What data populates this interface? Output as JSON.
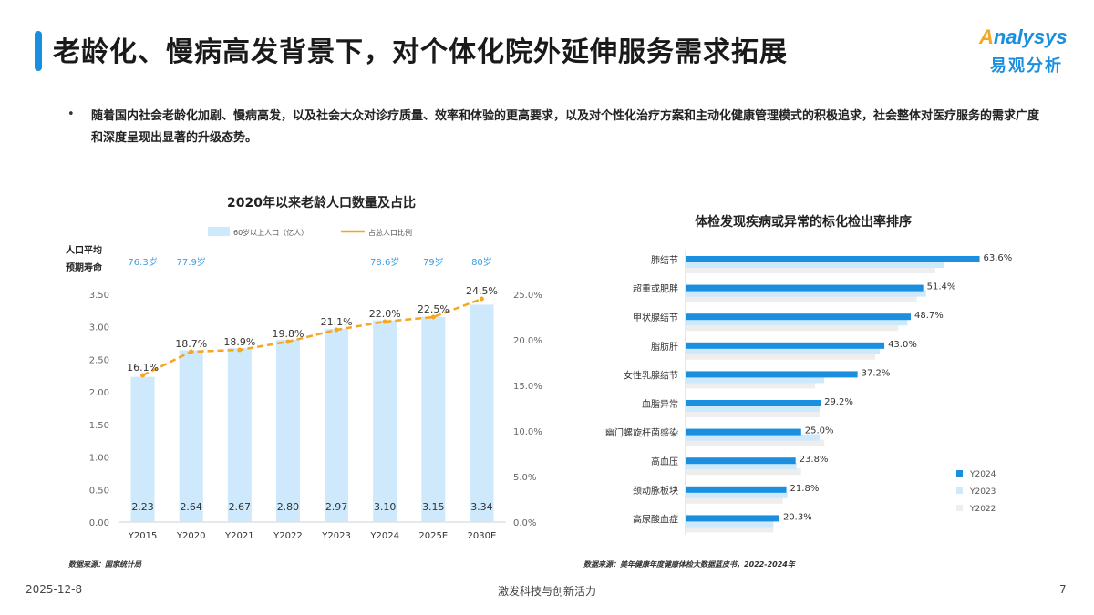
{
  "header": {
    "title": "老龄化、慢病高发背景下，对个体化院外延伸服务需求拓展",
    "logo_top_a": "A",
    "logo_top_rest": "nalysys",
    "logo_bottom": "易观分析"
  },
  "intro": {
    "bullet": "•",
    "text": "随着国内社会老龄化加剧、慢病高发，以及社会大众对诊疗质量、效率和体验的更高要求，以及对个性化治疗方案和主动化健康管理模式的积极追求，社会整体对医疗服务的需求广度和深度呈现出显著的升级态势。"
  },
  "chart_data": [
    {
      "type": "bar",
      "title": "2020年以来老龄人口数量及占比",
      "categories": [
        "Y2015",
        "Y2020",
        "Y2021",
        "Y2022",
        "Y2023",
        "Y2024",
        "2025E",
        "2030E"
      ],
      "series": [
        {
          "name": "60岁以上人口（亿人）",
          "type": "bar",
          "values": [
            2.23,
            2.64,
            2.67,
            2.8,
            2.97,
            3.1,
            3.15,
            3.34
          ],
          "value_labels": [
            "2.23",
            "2.64",
            "2.67",
            "2.80",
            "2.97",
            "3.10",
            "3.15",
            "3.34"
          ]
        },
        {
          "name": "占总人口比例",
          "type": "line",
          "axis": "right",
          "values": [
            16.1,
            18.7,
            18.9,
            19.8,
            21.1,
            22.0,
            22.5,
            24.5
          ],
          "value_labels": [
            "16.1%",
            "18.7%",
            "18.9%",
            "19.8%",
            "21.1%",
            "22.0%",
            "22.5%",
            "24.5%"
          ]
        }
      ],
      "ylim_left": [
        0,
        3.5
      ],
      "yticks_left": [
        "0.00",
        "0.50",
        "1.00",
        "1.50",
        "2.00",
        "2.50",
        "3.00",
        "3.50"
      ],
      "ylim_right": [
        0,
        25
      ],
      "yticks_right": [
        "0.0%",
        "5.0%",
        "10.0%",
        "15.0%",
        "20.0%",
        "25.0%"
      ],
      "life_expectancy_label_line1": "人口平均",
      "life_expectancy_label_line2": "预期寿命",
      "life_expectancy": [
        "76.3岁",
        "77.9岁",
        "",
        "",
        "",
        "78.6岁",
        "79岁",
        "80岁"
      ],
      "legend_position": "top",
      "source": "数据来源：国家统计局",
      "colors": {
        "bar": "#cde9fb",
        "line": "#f5a623",
        "life": "#3a9de0"
      }
    },
    {
      "type": "bar",
      "orientation": "horizontal",
      "title": "体检发现疾病或异常的标化检出率排序",
      "categories": [
        "肺结节",
        "超重或肥胖",
        "甲状腺结节",
        "脂肪肝",
        "女性乳腺结节",
        "血脂异常",
        "幽门螺旋杆菌感染",
        "高血压",
        "颈动脉板块",
        "高尿酸血症"
      ],
      "series": [
        {
          "name": "Y2024",
          "values": [
            63.6,
            51.4,
            48.7,
            43.0,
            37.2,
            29.2,
            25.0,
            23.8,
            21.8,
            20.3
          ],
          "value_labels": [
            "63.6%",
            "51.4%",
            "48.7%",
            "43.0%",
            "37.2%",
            "29.2%",
            "25.0%",
            "23.8%",
            "21.8%",
            "20.3%"
          ]
        },
        {
          "name": "Y2023",
          "values": [
            56,
            52,
            48,
            42,
            30,
            29,
            29,
            24,
            22,
            19
          ]
        },
        {
          "name": "Y2022",
          "values": [
            54,
            50,
            46,
            41,
            28,
            29,
            30,
            25,
            21,
            19
          ]
        }
      ],
      "xlim": [
        0,
        70
      ],
      "legend_position": "right",
      "source": "数据来源：美年健康年度健康体检大数据蓝皮书，2022-2024年",
      "colors": {
        "Y2024": "#1a8fe0",
        "Y2023": "#cde9fb",
        "Y2022": "#eeeeee"
      }
    }
  ],
  "footer": {
    "date": "2025-12-8",
    "slogan": "激发科技与创新活力",
    "page": "7"
  }
}
